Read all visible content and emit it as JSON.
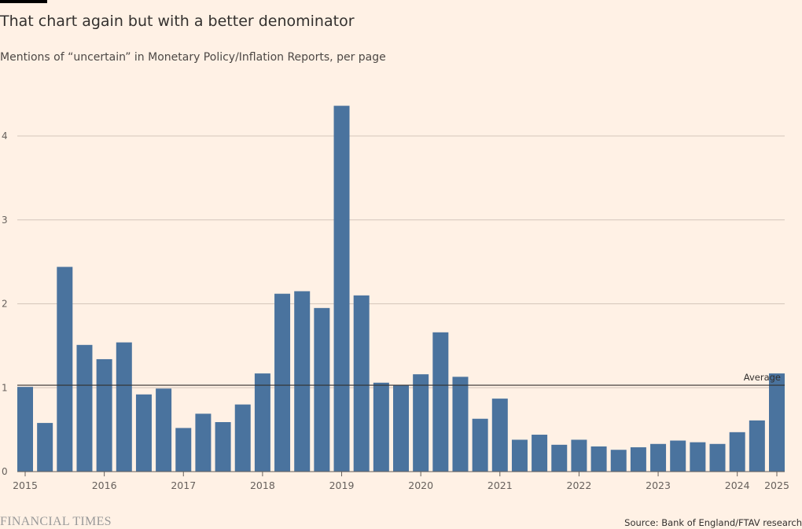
{
  "title": "That chart again but with a better denominator",
  "subtitle": "Mentions of “uncertain” in Monetary Policy/Inflation Reports, per page",
  "source": "Source: Bank of England/FTAV research",
  "logo": "FINANCIAL TIMES",
  "colors": {
    "bar": "#4a739e",
    "background": "#fff1e5",
    "grid": "#d4c6bb",
    "average": "#33302e"
  },
  "chart_data": {
    "type": "bar",
    "title": "That chart again but with a better denominator",
    "subtitle": "Mentions of “uncertain” in Monetary Policy/Inflation Reports, per page",
    "xlabel": "",
    "ylabel": "",
    "ylim": [
      0,
      4.4
    ],
    "yticks": [
      0,
      1,
      2,
      3,
      4
    ],
    "grid": true,
    "values": [
      1.01,
      0.58,
      2.44,
      1.51,
      1.34,
      1.54,
      0.92,
      0.99,
      0.52,
      0.69,
      0.59,
      0.8,
      1.17,
      2.12,
      2.15,
      1.95,
      4.36,
      2.1,
      1.06,
      1.03,
      1.16,
      1.66,
      1.13,
      0.63,
      0.87,
      0.38,
      0.44,
      0.32,
      0.38,
      0.3,
      0.26,
      0.29,
      0.33,
      0.37,
      0.35,
      0.33,
      0.47,
      0.61,
      1.17
    ],
    "xticks": [
      {
        "label": "2015",
        "bar": 0
      },
      {
        "label": "2016",
        "bar": 4
      },
      {
        "label": "2017",
        "bar": 8
      },
      {
        "label": "2018",
        "bar": 12
      },
      {
        "label": "2019",
        "bar": 16
      },
      {
        "label": "2020",
        "bar": 20
      },
      {
        "label": "2021",
        "bar": 24
      },
      {
        "label": "2022",
        "bar": 28
      },
      {
        "label": "2023",
        "bar": 32
      },
      {
        "label": "2024",
        "bar": 36
      },
      {
        "label": "2025",
        "bar": 38
      }
    ],
    "average": {
      "label": "Average",
      "value": 1.03
    }
  }
}
